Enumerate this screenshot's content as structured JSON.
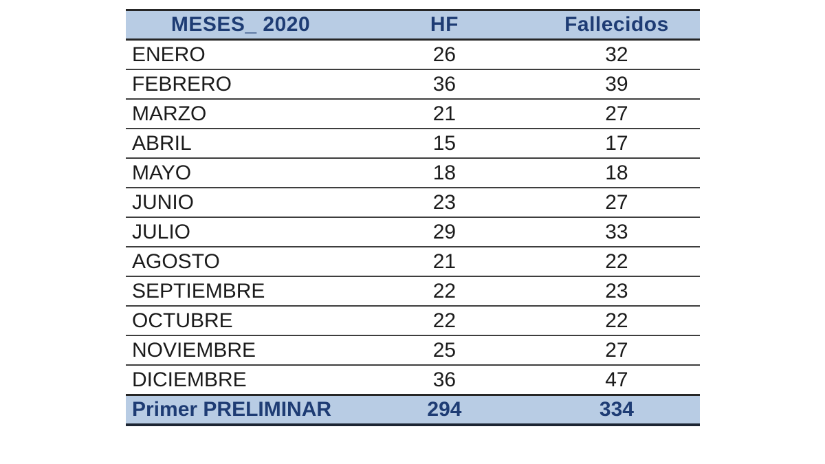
{
  "table": {
    "columns": [
      "MESES_ 2020",
      "HF",
      "Fallecidos"
    ],
    "rows": [
      [
        "ENERO",
        "26",
        "32"
      ],
      [
        "FEBRERO",
        "36",
        "39"
      ],
      [
        "MARZO",
        "21",
        "27"
      ],
      [
        "ABRIL",
        "15",
        "17"
      ],
      [
        "MAYO",
        "18",
        "18"
      ],
      [
        "JUNIO",
        "23",
        "27"
      ],
      [
        "JULIO",
        "29",
        "33"
      ],
      [
        "AGOSTO",
        "21",
        "22"
      ],
      [
        "SEPTIEMBRE",
        "22",
        "23"
      ],
      [
        "OCTUBRE",
        "22",
        "22"
      ],
      [
        "NOVIEMBRE",
        "25",
        "27"
      ],
      [
        "DICIEMBRE",
        "36",
        "47"
      ]
    ],
    "footer": [
      "Primer PRELIMINAR",
      "294",
      "334"
    ]
  },
  "chart_data": {
    "type": "table",
    "title": "MESES_ 2020",
    "categories": [
      "ENERO",
      "FEBRERO",
      "MARZO",
      "ABRIL",
      "MAYO",
      "JUNIO",
      "JULIO",
      "AGOSTO",
      "SEPTIEMBRE",
      "OCTUBRE",
      "NOVIEMBRE",
      "DICIEMBRE"
    ],
    "series": [
      {
        "name": "HF",
        "values": [
          26,
          36,
          21,
          15,
          18,
          23,
          29,
          21,
          22,
          22,
          25,
          36
        ],
        "total": 294
      },
      {
        "name": "Fallecidos",
        "values": [
          32,
          39,
          27,
          17,
          18,
          27,
          33,
          22,
          23,
          22,
          27,
          47
        ],
        "total": 334
      }
    ],
    "total_row_label": "Primer PRELIMINAR"
  },
  "colors": {
    "header_background": "#b8cce4",
    "header_text": "#1e3c74",
    "body_text": "#1b1b1b",
    "row_border": "#3d3d3d",
    "outer_border": "#262626",
    "bottom_border": "#1c2533",
    "page_background": "#ffffff"
  }
}
